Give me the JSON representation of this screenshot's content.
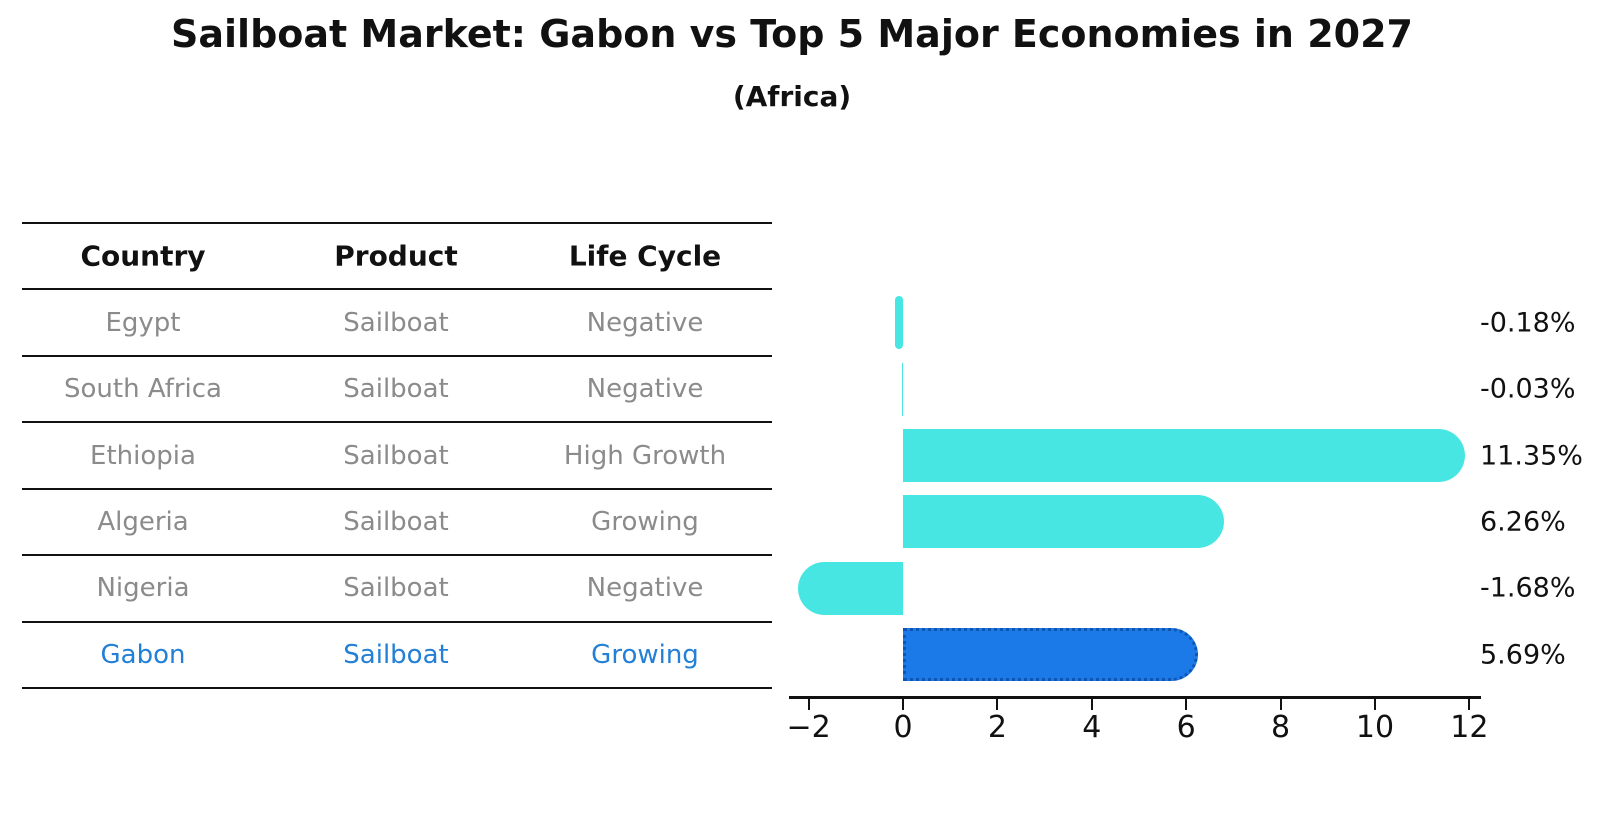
{
  "title": "Sailboat Market: Gabon vs Top 5 Major Economies in 2027",
  "subtitle": "(Africa)",
  "table": {
    "headers": [
      "Country",
      "Product",
      "Life Cycle"
    ],
    "rows": [
      {
        "country": "Egypt",
        "product": "Sailboat",
        "life_cycle": "Negative",
        "highlighted": false
      },
      {
        "country": "South Africa",
        "product": "Sailboat",
        "life_cycle": "Negative",
        "highlighted": false
      },
      {
        "country": "Ethiopia",
        "product": "Sailboat",
        "life_cycle": "High Growth",
        "highlighted": false
      },
      {
        "country": "Algeria",
        "product": "Sailboat",
        "life_cycle": "Growing",
        "highlighted": false
      },
      {
        "country": "Nigeria",
        "product": "Sailboat",
        "life_cycle": "Negative",
        "highlighted": false
      },
      {
        "country": "Gabon",
        "product": "Sailboat",
        "life_cycle": "Growing",
        "highlighted": true
      }
    ]
  },
  "chart_data": {
    "type": "bar",
    "orientation": "horizontal",
    "title": "Sailboat Market: Gabon vs Top 5 Major Economies in 2027",
    "subtitle": "(Africa)",
    "categories": [
      "Egypt",
      "South Africa",
      "Ethiopia",
      "Algeria",
      "Nigeria",
      "Gabon"
    ],
    "values": [
      -0.18,
      -0.03,
      11.35,
      6.26,
      -1.68,
      5.69
    ],
    "value_labels": [
      "-0.18%",
      "-0.03%",
      "11.35%",
      "6.26%",
      "-1.68%",
      "5.69%"
    ],
    "xticks": [
      -2,
      0,
      2,
      4,
      6,
      8,
      10,
      12
    ],
    "xtick_labels": [
      "−2",
      "0",
      "2",
      "4",
      "6",
      "8",
      "10",
      "12"
    ],
    "xlim": [
      -2.4,
      12.25
    ],
    "grid": false,
    "legend": false,
    "highlight_index": 5,
    "colors": {
      "bar": "#48e6e2",
      "highlight_bar": "#1b7ae8",
      "highlight_border": "#0e56b4",
      "highlight_text": "#2380d6",
      "text": "#111111",
      "muted_text": "#8b8b8b"
    }
  }
}
